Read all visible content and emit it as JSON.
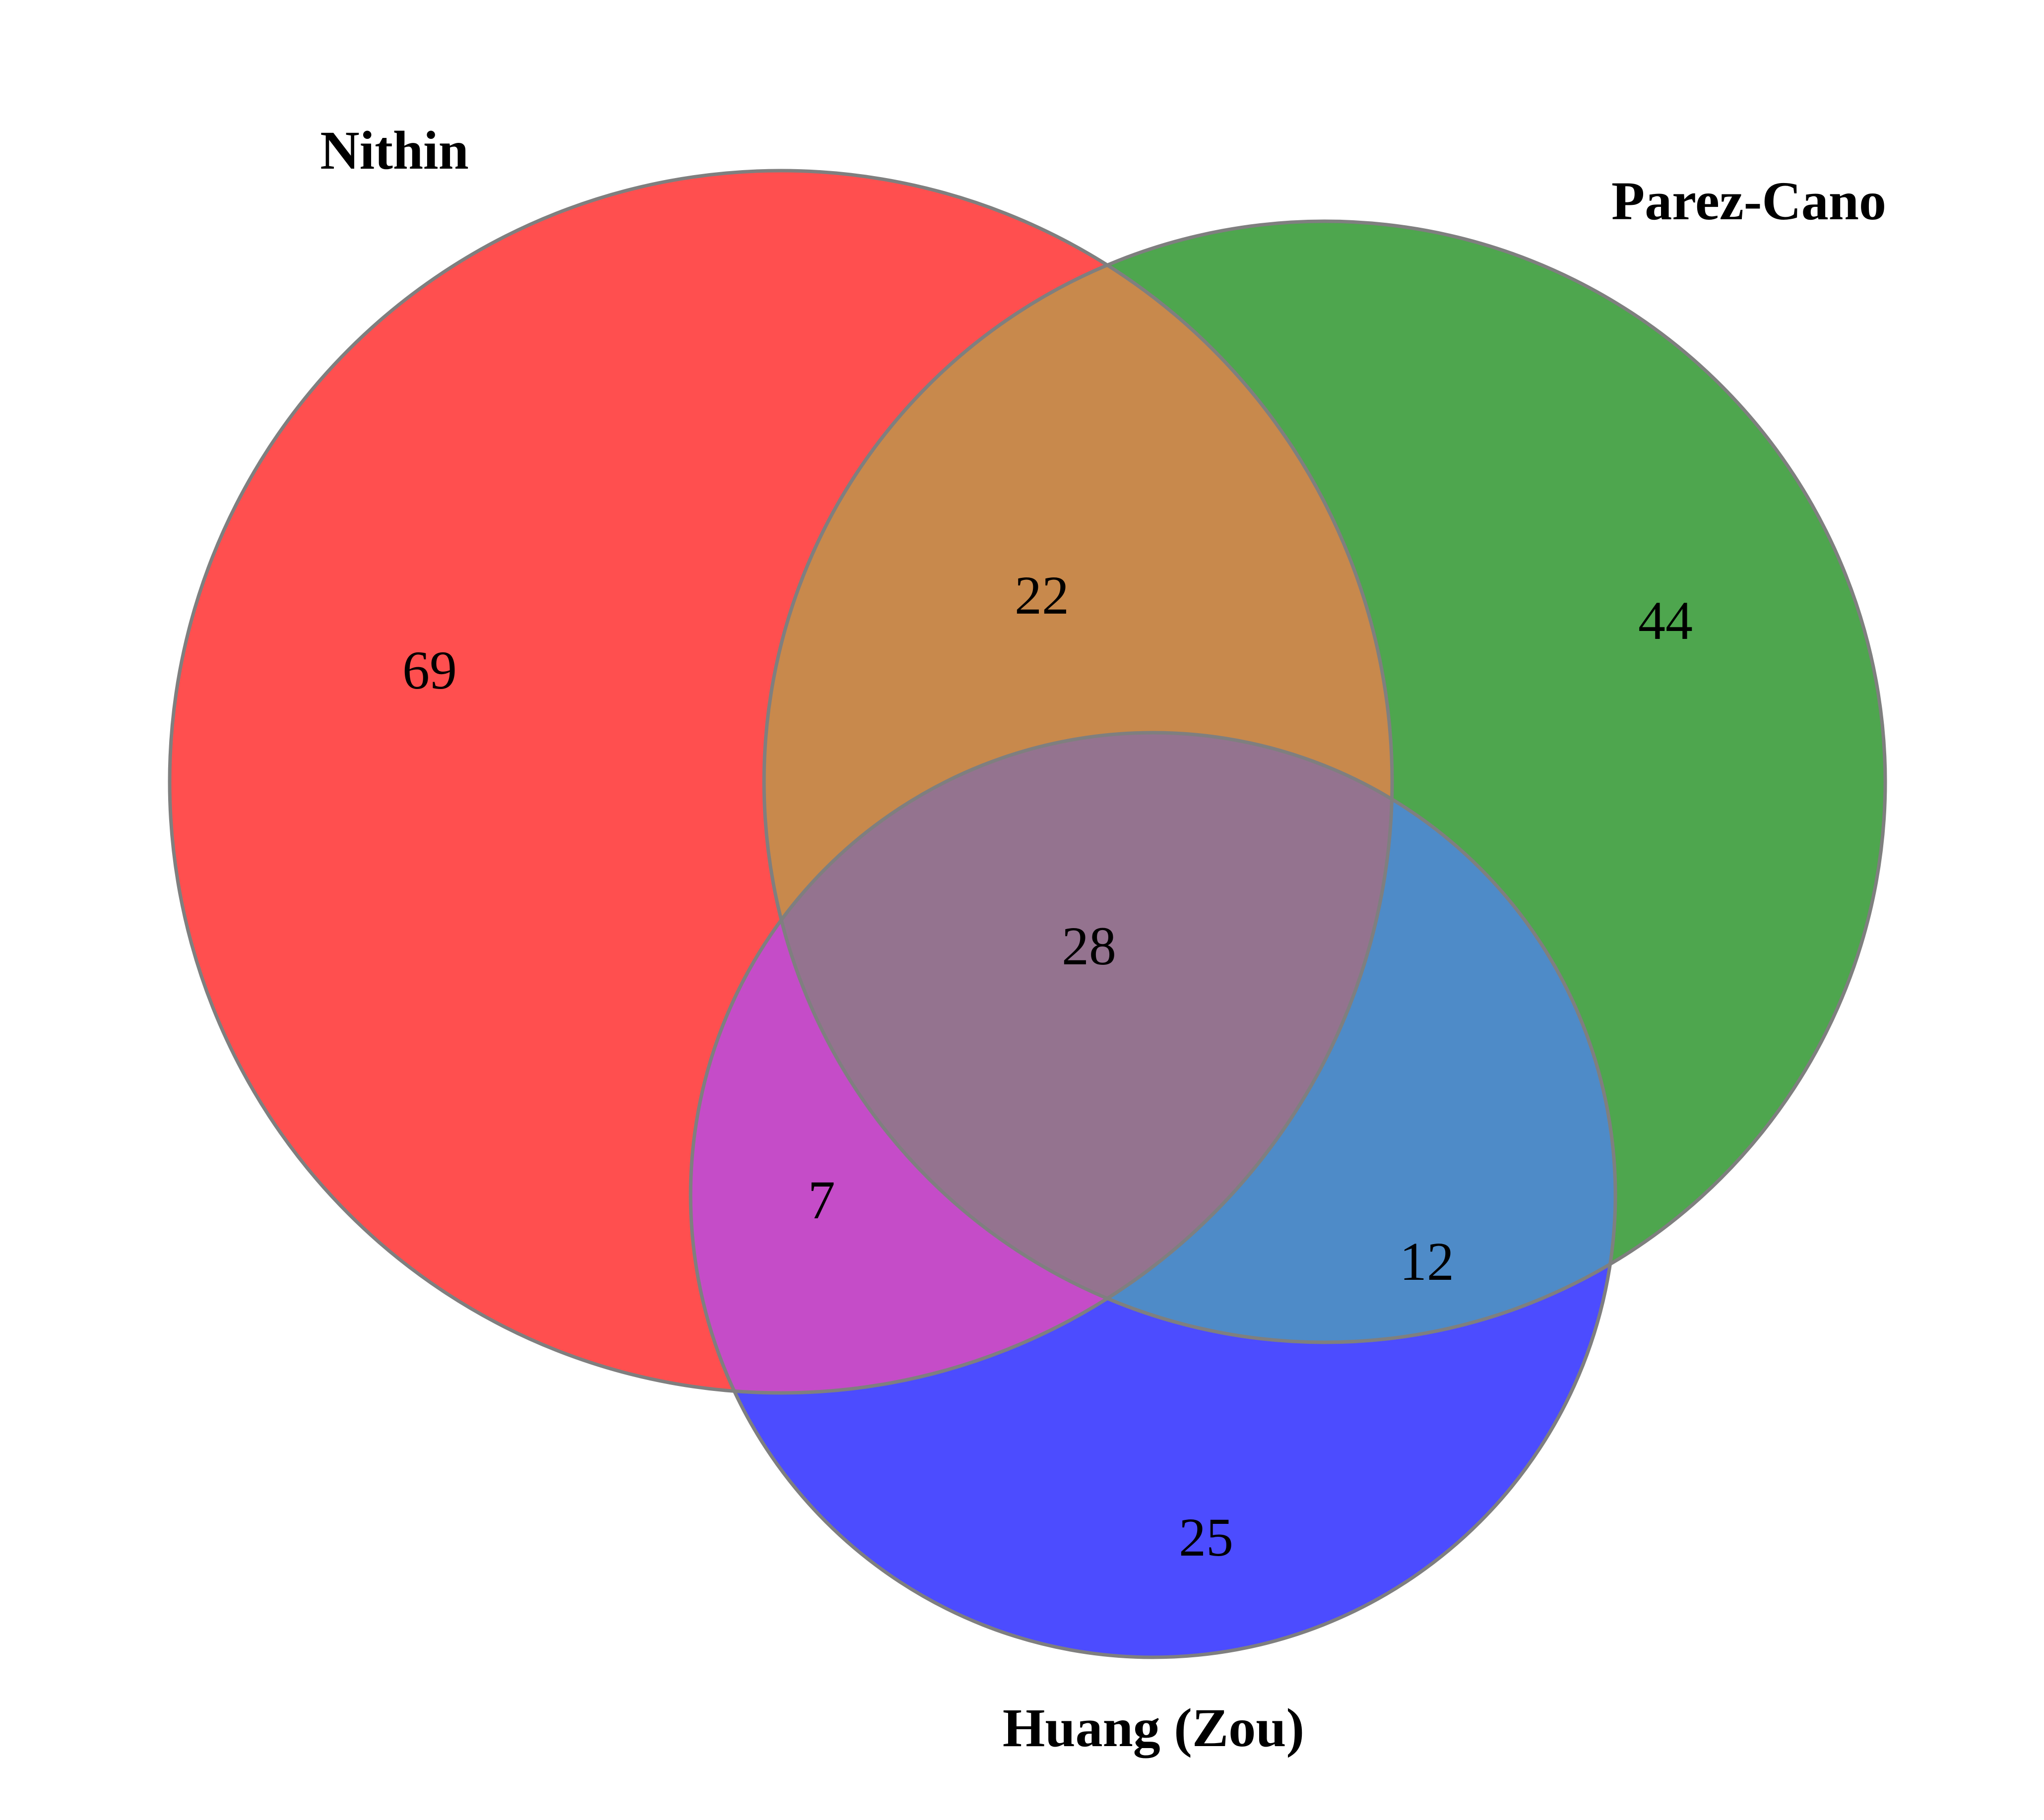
{
  "sets": [
    {
      "id": "A",
      "label": "Nithin",
      "color": "#ff0000"
    },
    {
      "id": "B",
      "label": "Parez-Cano",
      "color": "#008000"
    },
    {
      "id": "C",
      "label": "Huang (Zou)",
      "color": "#0000ff"
    }
  ],
  "regions": {
    "A_only": "69",
    "B_only": "44",
    "C_only": "25",
    "AB": "22",
    "AC": "7",
    "BC": "12",
    "ABC": "28"
  },
  "style": {
    "fill_opacity": 0.7,
    "outline_color": "#7f7f7f"
  }
}
